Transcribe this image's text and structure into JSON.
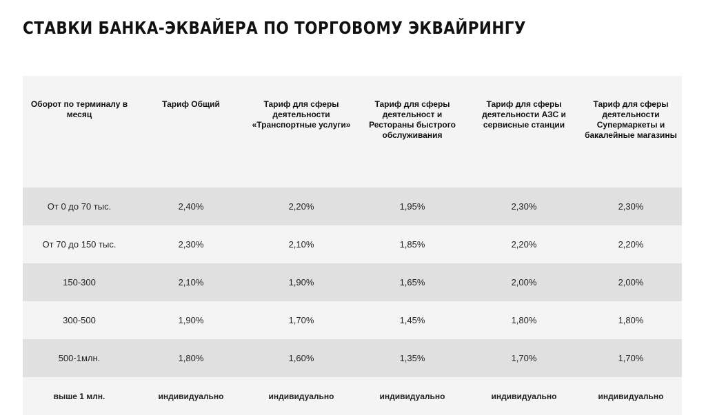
{
  "title": "СТАВКИ БАНКА-ЭКВАЙЕРА ПО ТОРГОВОМУ ЭКВАЙРИНГУ",
  "table": {
    "headers": [
      "Оборот по терминалу в месяц",
      "Тариф Общий",
      "Тариф для сферы деятельности «Транспортные услуги»",
      "Тариф для сферы деятельност и Рестораны быстрого обслуживания",
      "Тариф для сферы деятельности АЗС и сервисные станции",
      "Тариф для сферы деятельности Супермаркеты и бакалейные магазины"
    ],
    "rows": [
      [
        "От 0 до 70 тыс.",
        "2,40%",
        "2,20%",
        "1,95%",
        "2,30%",
        "2,30%"
      ],
      [
        "От 70 до 150 тыс.",
        "2,30%",
        "2,10%",
        "1,85%",
        "2,20%",
        "2,20%"
      ],
      [
        "150-300",
        "2,10%",
        "1,90%",
        "1,65%",
        "2,00%",
        "2,00%"
      ],
      [
        "300-500",
        "1,90%",
        "1,70%",
        "1,45%",
        "1,80%",
        "1,80%"
      ],
      [
        "500-1млн.",
        "1,80%",
        "1,60%",
        "1,35%",
        "1,70%",
        "1,70%"
      ],
      [
        "выше 1 млн.",
        "индивидуально",
        "индивидуально",
        "индивидуально",
        "индивидуально",
        "индивидуально"
      ]
    ]
  }
}
